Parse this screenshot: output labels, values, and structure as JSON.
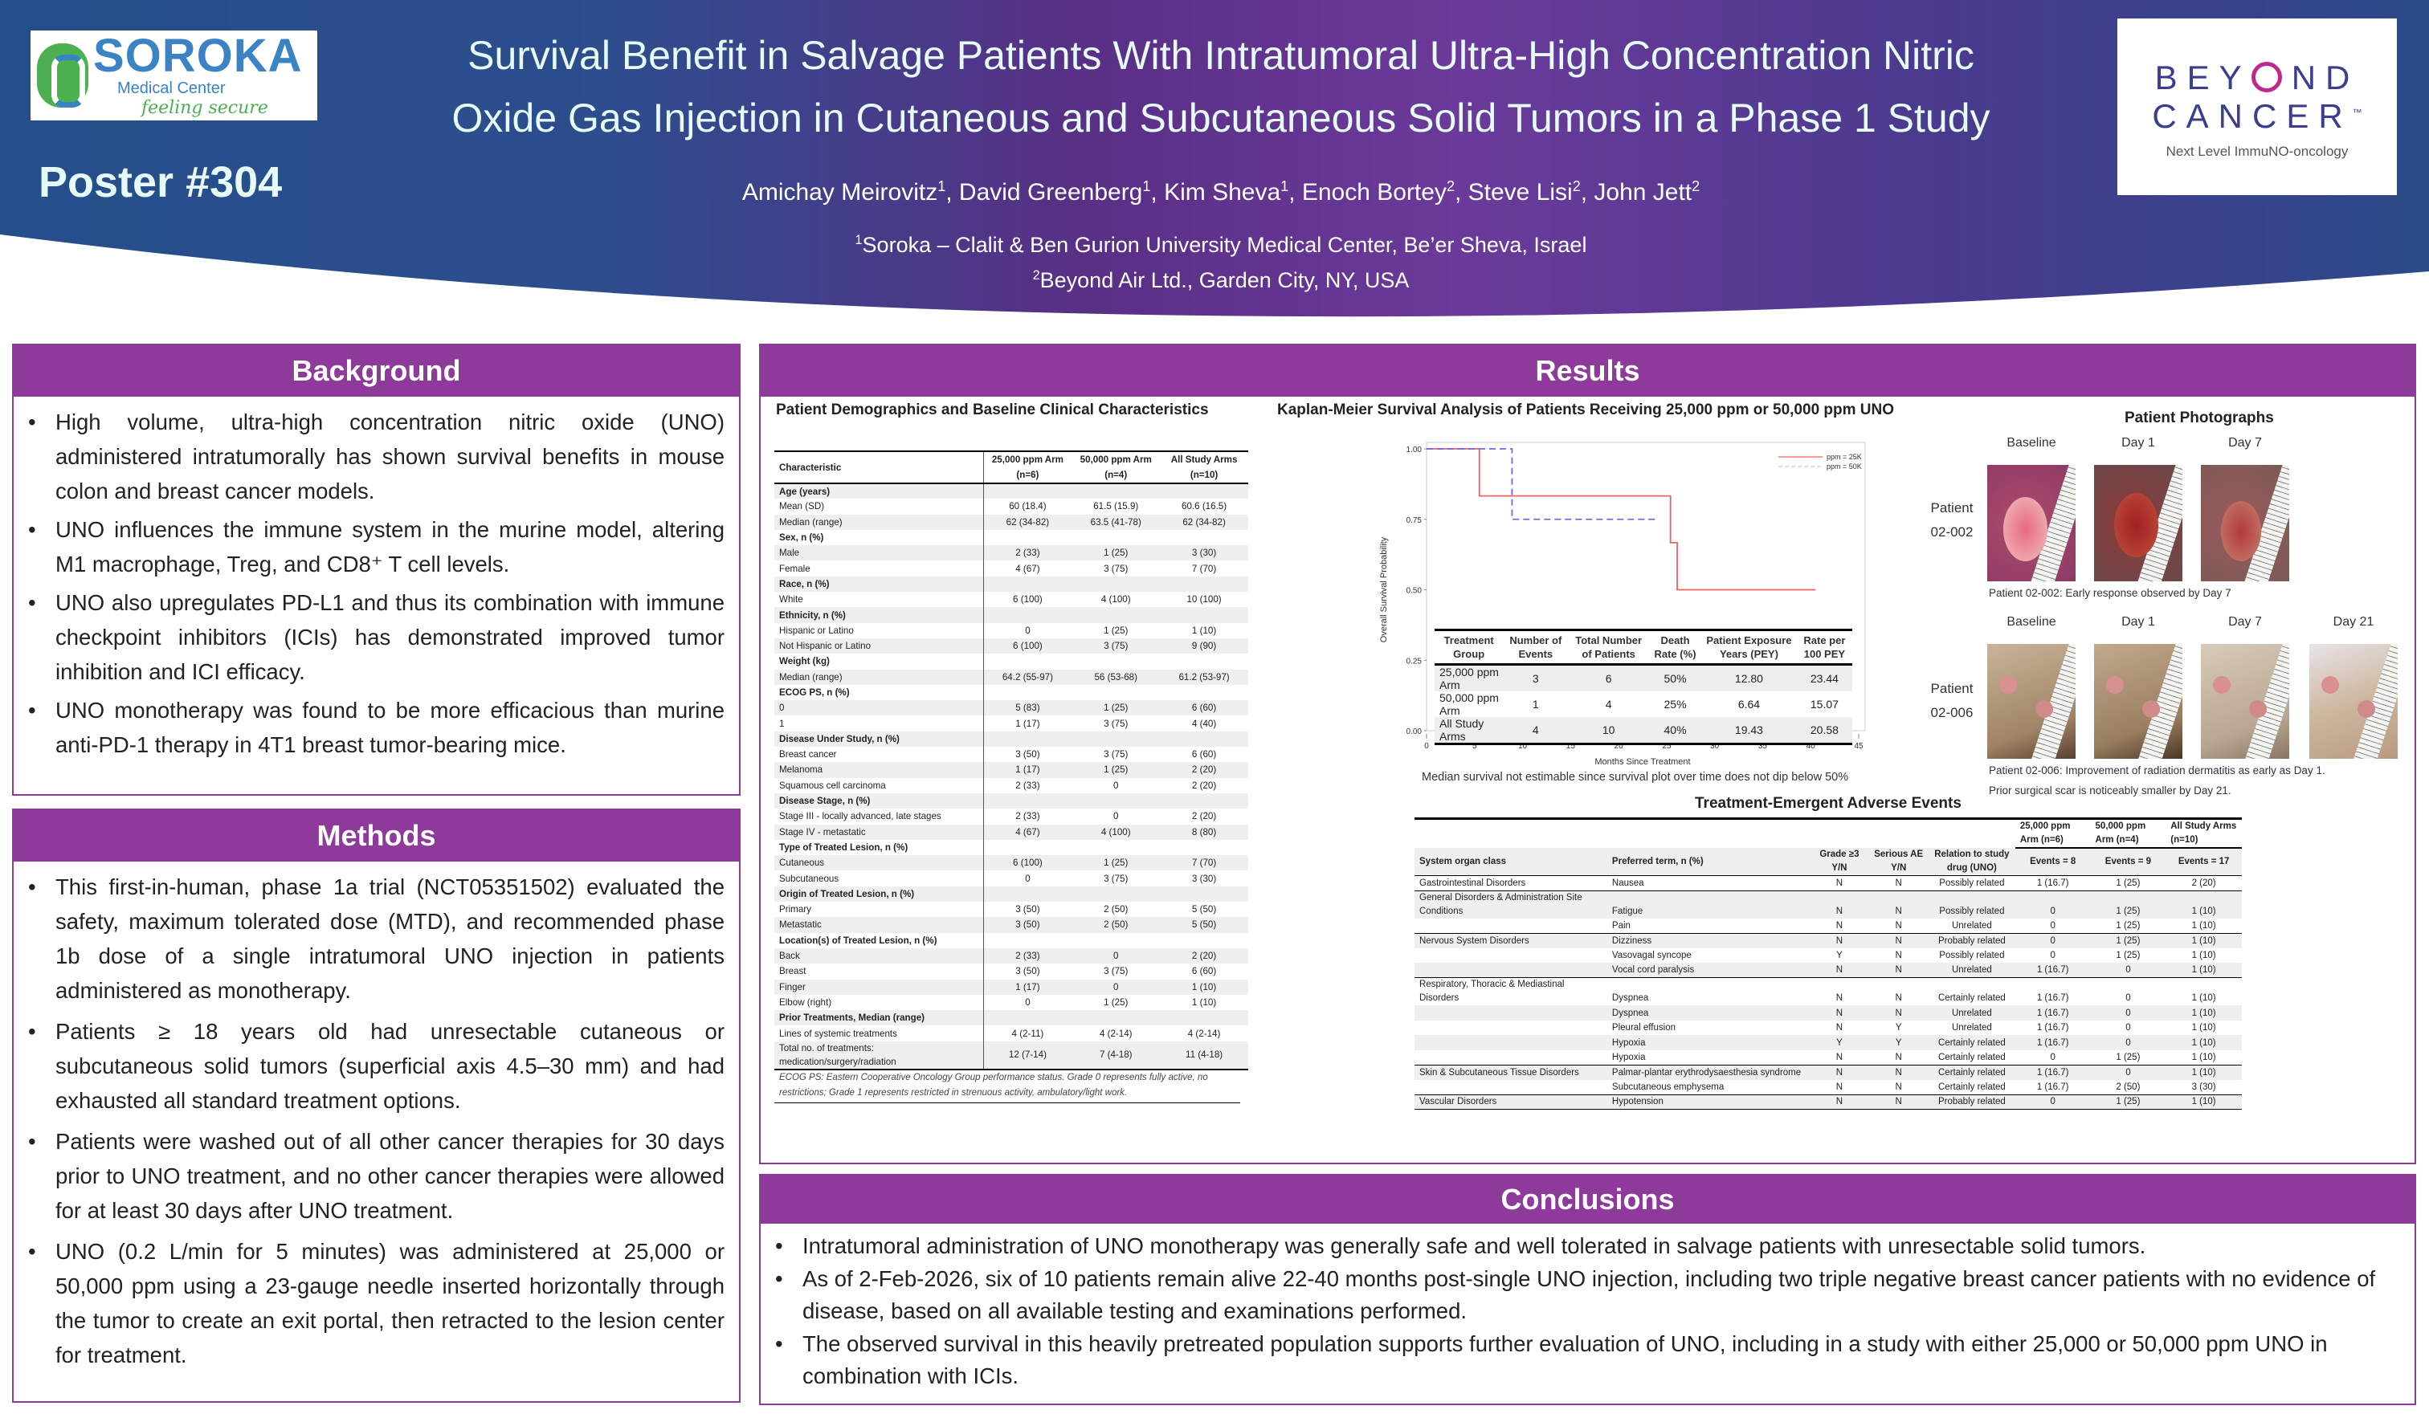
{
  "header": {
    "title_lines": [
      "Survival Benefit in Salvage Patients With Intratumoral Ultra-High Concentration Nitric",
      "Oxide Gas Injection in Cutaneous and Subcutaneous Solid Tumors in a Phase 1 Study"
    ],
    "poster_number": "Poster #304",
    "authors": [
      {
        "name": "Amichay Meirovitz",
        "sup": "1"
      },
      {
        "name": "David Greenberg",
        "sup": "1"
      },
      {
        "name": "Kim Sheva",
        "sup": "1"
      },
      {
        "name": "Enoch Bortey",
        "sup": "2"
      },
      {
        "name": "Steve Lisi",
        "sup": "2"
      },
      {
        "name": "John Jett",
        "sup": "2"
      }
    ],
    "affiliations": [
      {
        "sup": "1",
        "text": "Soroka – Clalit & Ben Gurion University Medical Center, Be’er Sheva, Israel"
      },
      {
        "sup": "2",
        "text": "Beyond Air Ltd., Garden City, NY, USA"
      }
    ],
    "soroka_logo": {
      "word": "SOROKA",
      "sub": "Medical Center",
      "tagline": "feeling secure"
    },
    "beyond_logo": {
      "line1_a": "BEY",
      "line1_b": "ND",
      "line2": "CANCER",
      "tm": "™",
      "tagline": "Next Level ImmuNO-oncology"
    }
  },
  "background": {
    "title": "Background",
    "bullets": [
      "High volume, ultra-high concentration nitric oxide (UNO) administered intratumorally has shown survival benefits in mouse colon and breast cancer models.",
      "UNO influences the immune system in the murine model, altering M1 macrophage, Treg, and CD8⁺ T cell levels.",
      "UNO also upregulates PD-L1 and thus its combination with immune checkpoint inhibitors (ICIs) has demonstrated improved tumor inhibition and ICI efficacy.",
      "UNO monotherapy was found to be more efficacious than murine anti-PD-1 therapy in 4T1 breast tumor-bearing mice."
    ]
  },
  "methods": {
    "title": "Methods",
    "bullets": [
      "This first-in-human, phase 1a trial (NCT05351502) evaluated the safety, maximum tolerated dose (MTD), and recommended phase 1b dose of a single intratumoral UNO injection in patients administered as monotherapy.",
      "Patients ≥ 18 years old had unresectable cutaneous or subcutaneous solid tumors (superficial axis 4.5–30 mm) and had exhausted all standard treatment options.",
      "Patients were washed out of all other cancer therapies for 30 days prior to UNO treatment, and no other cancer therapies were allowed for at least 30 days after UNO treatment.",
      "UNO (0.2 L/min for 5 minutes) was administered at 25,000 or 50,000 ppm using a 23-gauge needle inserted horizontally through the tumor to create an exit portal, then retracted to the lesion center for treatment."
    ]
  },
  "results": {
    "title": "Results",
    "demographics": {
      "title": "Patient Demographics and Baseline Clinical Characteristics",
      "columns": [
        "Characteristic",
        "25,000 ppm Arm (n=6)",
        "50,000 ppm Arm (n=4)",
        "All Study Arms (n=10)"
      ],
      "rows": [
        [
          "Age (years)",
          "",
          "",
          "",
          "h"
        ],
        [
          "Mean (SD)",
          "60 (18.4)",
          "61.5 (15.9)",
          "60.6 (16.5)"
        ],
        [
          "Median (range)",
          "62 (34-82)",
          "63.5 (41-78)",
          "62 (34-82)"
        ],
        [
          "Sex, n (%)",
          "",
          "",
          "",
          "h"
        ],
        [
          "Male",
          "2 (33)",
          "1 (25)",
          "3 (30)"
        ],
        [
          "Female",
          "4 (67)",
          "3 (75)",
          "7 (70)"
        ],
        [
          "Race, n (%)",
          "",
          "",
          "",
          "h"
        ],
        [
          "White",
          "6 (100)",
          "4 (100)",
          "10 (100)"
        ],
        [
          "Ethnicity, n (%)",
          "",
          "",
          "",
          "h"
        ],
        [
          "Hispanic or Latino",
          "0",
          "1 (25)",
          "1 (10)"
        ],
        [
          "Not Hispanic or Latino",
          "6 (100)",
          "3 (75)",
          "9 (90)"
        ],
        [
          "Weight (kg)",
          "",
          "",
          "",
          "h"
        ],
        [
          "Median (range)",
          "64.2 (55-97)",
          "56 (53-68)",
          "61.2 (53-97)"
        ],
        [
          "ECOG PS, n (%)",
          "",
          "",
          "",
          "h"
        ],
        [
          "0",
          "5 (83)",
          "1 (25)",
          "6 (60)"
        ],
        [
          "1",
          "1 (17)",
          "3 (75)",
          "4 (40)"
        ],
        [
          "Disease Under Study, n (%)",
          "",
          "",
          "",
          "h"
        ],
        [
          "Breast cancer",
          "3 (50)",
          "3 (75)",
          "6 (60)"
        ],
        [
          "Melanoma",
          "1 (17)",
          "1 (25)",
          "2 (20)"
        ],
        [
          "Squamous cell carcinoma",
          "2 (33)",
          "0",
          "2 (20)"
        ],
        [
          "Disease Stage, n (%)",
          "",
          "",
          "",
          "h"
        ],
        [
          "Stage III - locally advanced, late stages",
          "2 (33)",
          "0",
          "2 (20)"
        ],
        [
          "Stage IV - metastatic",
          "4 (67)",
          "4 (100)",
          "8 (80)"
        ],
        [
          "Type of Treated Lesion, n (%)",
          "",
          "",
          "",
          "h"
        ],
        [
          "Cutaneous",
          "6 (100)",
          "1 (25)",
          "7 (70)"
        ],
        [
          "Subcutaneous",
          "0",
          "3 (75)",
          "3 (30)"
        ],
        [
          "Origin of Treated Lesion, n (%)",
          "",
          "",
          "",
          "h"
        ],
        [
          "Primary",
          "3 (50)",
          "2 (50)",
          "5 (50)"
        ],
        [
          "Metastatic",
          "3 (50)",
          "2 (50)",
          "5 (50)"
        ],
        [
          "Location(s) of Treated Lesion, n (%)",
          "",
          "",
          "",
          "h"
        ],
        [
          "Back",
          "2 (33)",
          "0",
          "2 (20)"
        ],
        [
          "Breast",
          "3 (50)",
          "3 (75)",
          "6 (60)"
        ],
        [
          "Finger",
          "1 (17)",
          "0",
          "1 (10)"
        ],
        [
          "Elbow (right)",
          "0",
          "1 (25)",
          "1 (10)"
        ],
        [
          "Prior Treatments, Median (range)",
          "",
          "",
          "",
          "h"
        ],
        [
          "Lines of systemic treatments",
          "4 (2-11)",
          "4 (2-14)",
          "4 (2-14)"
        ],
        [
          "Total no. of treatments: medication/surgery/radiation",
          "12 (7-14)",
          "7 (4-18)",
          "11 (4-18)"
        ]
      ],
      "footnote": "ECOG PS: Eastern Cooperative Oncology Group performance status. Grade 0 represents fully active, no restrictions; Grade 1 represents restricted in strenuous activity, ambulatory/light work."
    },
    "km": {
      "title": "Kaplan-Meier Survival Analysis of Patients Receiving 25,000 ppm or 50,000 ppm UNO",
      "table_columns": [
        "Treatment Group",
        "Number of Events",
        "Total Number of Patients",
        "Death Rate (%)",
        "Patient Exposure Years (PEY)",
        "Rate per 100 PEY"
      ],
      "table_rows": [
        [
          "25,000 ppm Arm",
          "3",
          "6",
          "50%",
          "12.80",
          "23.44"
        ],
        [
          "50,000 ppm Arm",
          "1",
          "4",
          "25%",
          "6.64",
          "15.07"
        ],
        [
          "All Study Arms",
          "4",
          "10",
          "40%",
          "19.43",
          "20.58"
        ]
      ],
      "footnote": "Median survival not estimable since survival plot over time does not dip below 50%"
    },
    "photos": {
      "title": "Patient Photographs",
      "patient1": {
        "label": "Patient 02-002",
        "days": [
          "Baseline",
          "Day 1",
          "Day 7"
        ],
        "caption": "Patient 02-002: Early response observed by Day 7"
      },
      "patient2": {
        "label": "Patient 02-006",
        "days": [
          "Baseline",
          "Day 1",
          "Day 7",
          "Day 21"
        ],
        "caption_lines": [
          "Patient 02-006: Improvement of radiation dermatitis as early as Day 1.",
          "Prior surgical scar is noticeably smaller by Day 21."
        ]
      }
    },
    "ae": {
      "title": "Treatment-Emergent Adverse Events",
      "arm_headers": [
        "25,000 ppm Arm (n=6)",
        "50,000 ppm Arm (n=4)",
        "All Study Arms (n=10)"
      ],
      "columns": [
        "System organ class",
        "Preferred term, n (%)",
        "Grade ≥3 Y/N",
        "Serious AE Y/N",
        "Relation to study drug (UNO)",
        "Events = 8",
        "Events = 9",
        "Events = 17"
      ],
      "rows": [
        [
          "Gastrointestinal Disorders",
          "Nausea",
          "N",
          "N",
          "Possibly related",
          "1 (16.7)",
          "1 (25)",
          "2 (20)",
          "end"
        ],
        [
          "General Disorders & Administration Site Conditions",
          "Fatigue",
          "N",
          "N",
          "Possibly related",
          "0",
          "1 (25)",
          "1 (10)",
          ""
        ],
        [
          "",
          "Pain",
          "N",
          "N",
          "Unrelated",
          "0",
          "1 (25)",
          "1 (10)",
          "end"
        ],
        [
          "Nervous System Disorders",
          "Dizziness",
          "N",
          "N",
          "Probably related",
          "0",
          "1 (25)",
          "1 (10)",
          ""
        ],
        [
          "",
          "Vasovagal syncope",
          "Y",
          "N",
          "Possibly related",
          "0",
          "1 (25)",
          "1 (10)",
          ""
        ],
        [
          "",
          "Vocal cord paralysis",
          "N",
          "N",
          "Unrelated",
          "1 (16.7)",
          "0",
          "1 (10)",
          "end"
        ],
        [
          "Respiratory, Thoracic & Mediastinal Disorders",
          "Dyspnea",
          "N",
          "N",
          "Certainly related",
          "1 (16.7)",
          "0",
          "1 (10)",
          ""
        ],
        [
          "",
          "Dyspnea",
          "N",
          "N",
          "Unrelated",
          "1 (16.7)",
          "0",
          "1 (10)",
          ""
        ],
        [
          "",
          "Pleural effusion",
          "N",
          "Y",
          "Unrelated",
          "1 (16.7)",
          "0",
          "1 (10)",
          ""
        ],
        [
          "",
          "Hypoxia",
          "Y",
          "Y",
          "Certainly related",
          "1 (16.7)",
          "0",
          "1 (10)",
          ""
        ],
        [
          "",
          "Hypoxia",
          "N",
          "N",
          "Certainly related",
          "0",
          "1 (25)",
          "1 (10)",
          "end"
        ],
        [
          "Skin & Subcutaneous Tissue Disorders",
          "Palmar-plantar erythrodysaesthesia syndrome",
          "N",
          "N",
          "Certainly related",
          "1 (16.7)",
          "0",
          "1 (10)",
          ""
        ],
        [
          "",
          "Subcutaneous emphysema",
          "N",
          "N",
          "Certainly related",
          "1 (16.7)",
          "2 (50)",
          "3 (30)",
          "end"
        ],
        [
          "Vascular Disorders",
          "Hypotension",
          "N",
          "N",
          "Probably related",
          "0",
          "1 (25)",
          "1 (10)",
          "end"
        ]
      ]
    }
  },
  "conclusions": {
    "title": "Conclusions",
    "bullets": [
      "Intratumoral administration of UNO monotherapy was generally safe and well tolerated in salvage patients with unresectable solid tumors.",
      "As of 2-Feb-2026, six of 10 patients remain alive 22-40 months post-single UNO injection, including two triple negative breast cancer patients with no evidence of disease, based on all available testing and examinations performed.",
      "The observed survival in this heavily pretreated population supports further evaluation of UNO, including in a study with either 25,000 or 50,000 ppm UNO in combination with ICIs."
    ]
  },
  "chart_data": {
    "type": "line",
    "title": "Kaplan-Meier Survival Analysis of Patients Receiving 25,000 ppm or 50,000 ppm UNO",
    "xlabel": "Months Since Treatment",
    "ylabel": "Overall Survival Probability",
    "xlim": [
      0,
      45
    ],
    "ylim": [
      0,
      1
    ],
    "xticks": [
      "0",
      "5",
      "10",
      "15",
      "20",
      "25",
      "30",
      "35",
      "40",
      "45"
    ],
    "yticks": [
      "0.00",
      "0.25",
      "0.50",
      "0.75",
      "1.00"
    ],
    "legend_position": "top-right",
    "step": true,
    "series": [
      {
        "name": "ppm = 25K",
        "color": "#f06060",
        "dash": false,
        "x": [
          0,
          5.5,
          5.5,
          25.4,
          25.4,
          26.1,
          26.1,
          40.5
        ],
        "y": [
          1,
          1,
          0.833,
          0.833,
          0.667,
          0.667,
          0.5,
          0.5
        ]
      },
      {
        "name": "ppm = 50K",
        "color": "#6b6bf0",
        "dash": true,
        "x": [
          0,
          8.9,
          8.9,
          24
        ],
        "y": [
          1,
          1,
          0.75,
          0.75
        ]
      }
    ]
  },
  "colors": {
    "accent": "#8e3a9a",
    "header_blue": "#244f8a",
    "header_purple": "#6b3a9a"
  }
}
